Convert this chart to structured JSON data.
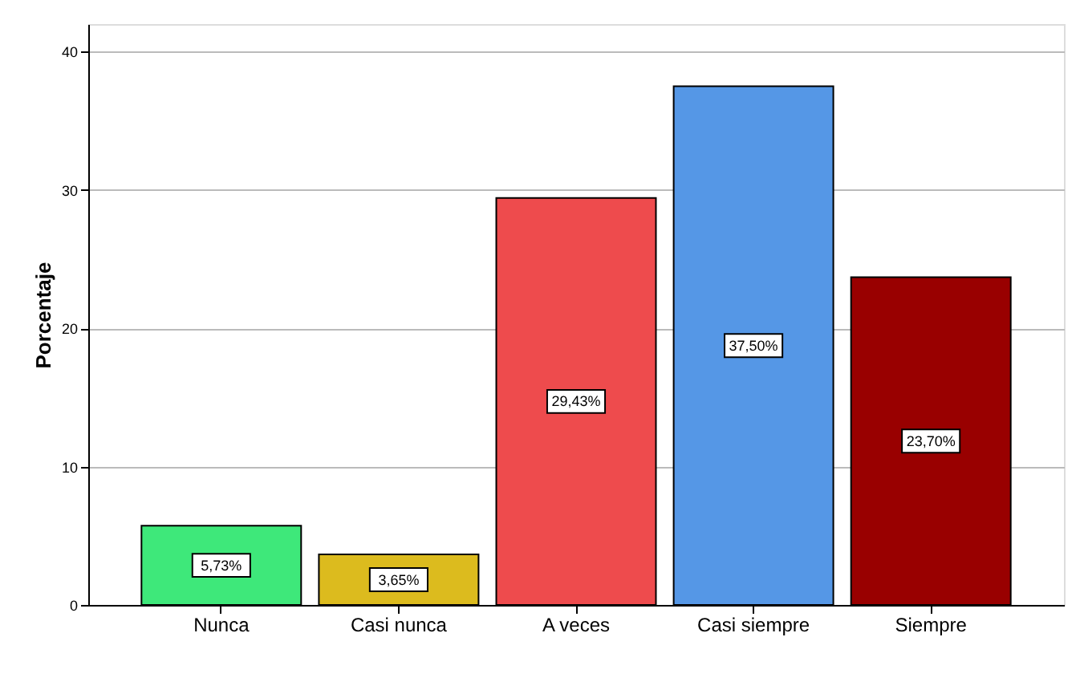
{
  "chart_data": {
    "type": "bar",
    "ylabel": "Porcentaje",
    "categories": [
      "Nunca",
      "Casi nunca",
      "A veces",
      "Casi siempre",
      "Siempre"
    ],
    "values": [
      5.73,
      3.65,
      29.43,
      37.5,
      23.7
    ],
    "colors": [
      "#3ee87a",
      "#dcbb1e",
      "#ee4b4d",
      "#5597e6",
      "#990000"
    ],
    "value_labels": [
      "5,73%",
      "3,65%",
      "29,43%",
      "37,50%",
      "23,70%"
    ],
    "ylim": [
      0,
      42
    ],
    "yticks": [
      0,
      10,
      20,
      30,
      40
    ],
    "grid": "y",
    "legend": false
  }
}
